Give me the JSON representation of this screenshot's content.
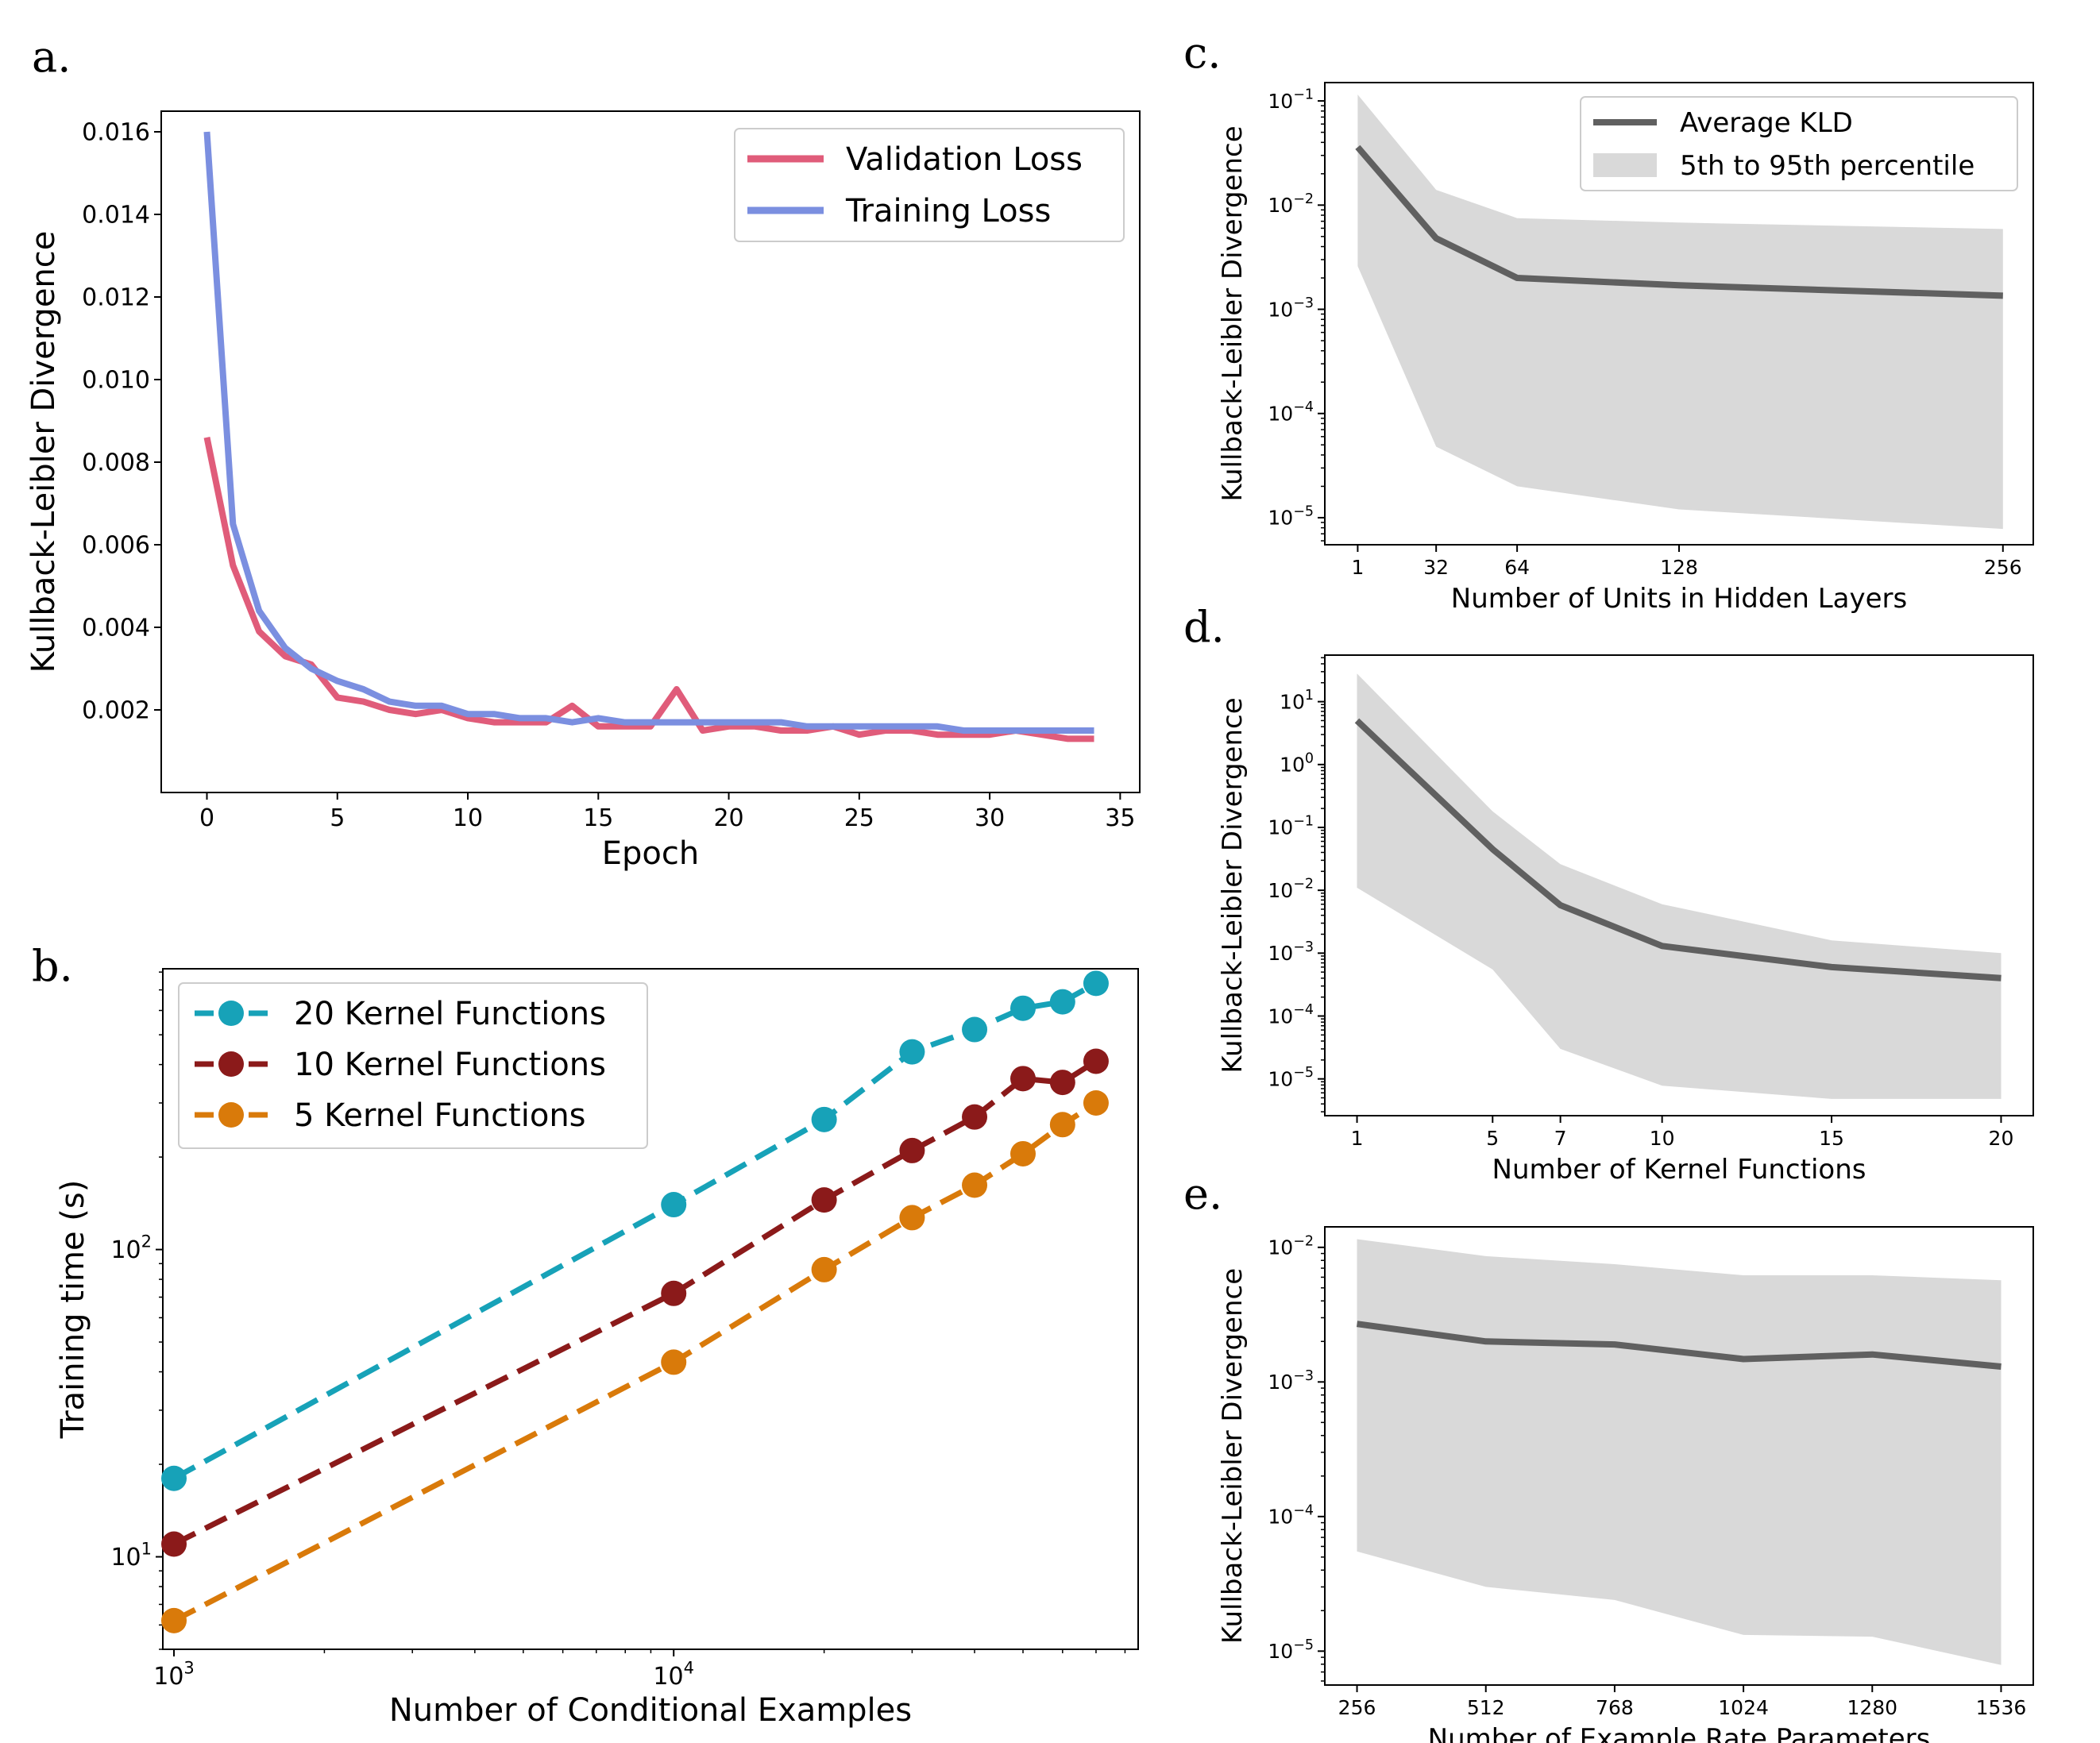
{
  "panel_labels": {
    "a": "a.",
    "b": "b.",
    "c": "c.",
    "d": "d.",
    "e": "e."
  },
  "chart_data": [
    {
      "id": "a",
      "type": "line",
      "title": "",
      "xlabel": "Epoch",
      "ylabel": "Kullback-Leibler Divergence",
      "xlim": [
        -1.75,
        35.75
      ],
      "ylim": [
        0.0,
        0.0165
      ],
      "x_ticks": [
        0,
        5,
        10,
        15,
        20,
        25,
        30,
        35
      ],
      "y_ticks": [
        0.002,
        0.004,
        0.006,
        0.008,
        0.01,
        0.012,
        0.014,
        0.016
      ],
      "y_tick_labels": [
        "0.002",
        "0.004",
        "0.006",
        "0.008",
        "0.010",
        "0.012",
        "0.014",
        "0.016"
      ],
      "legend": "top-right",
      "grid": false,
      "series": [
        {
          "name": "Validation Loss",
          "color": "#e05c7a",
          "x": [
            0,
            1,
            2,
            3,
            4,
            5,
            6,
            7,
            8,
            9,
            10,
            11,
            12,
            13,
            14,
            15,
            16,
            17,
            18,
            19,
            20,
            21,
            22,
            23,
            24,
            25,
            26,
            27,
            28,
            29,
            30,
            31,
            32,
            33,
            34
          ],
          "values": [
            0.0086,
            0.0055,
            0.0039,
            0.0033,
            0.0031,
            0.0023,
            0.0022,
            0.002,
            0.0019,
            0.002,
            0.0018,
            0.0017,
            0.0017,
            0.0017,
            0.0021,
            0.0016,
            0.0016,
            0.0016,
            0.0025,
            0.0015,
            0.0016,
            0.0016,
            0.0015,
            0.0015,
            0.0016,
            0.0014,
            0.0015,
            0.0015,
            0.0014,
            0.0014,
            0.0014,
            0.0015,
            0.0014,
            0.0013,
            0.0013
          ]
        },
        {
          "name": "Training Loss",
          "color": "#7b8fe0",
          "x": [
            0,
            1,
            2,
            3,
            4,
            5,
            6,
            7,
            8,
            9,
            10,
            11,
            12,
            13,
            14,
            15,
            16,
            17,
            18,
            19,
            20,
            21,
            22,
            23,
            24,
            25,
            26,
            27,
            28,
            29,
            30,
            31,
            32,
            33,
            34
          ],
          "values": [
            0.016,
            0.0065,
            0.0044,
            0.0035,
            0.003,
            0.0027,
            0.0025,
            0.0022,
            0.0021,
            0.0021,
            0.0019,
            0.0019,
            0.0018,
            0.0018,
            0.0017,
            0.0018,
            0.0017,
            0.0017,
            0.0017,
            0.0017,
            0.0017,
            0.0017,
            0.0017,
            0.0016,
            0.0016,
            0.0016,
            0.0016,
            0.0016,
            0.0016,
            0.0015,
            0.0015,
            0.0015,
            0.0015,
            0.0015,
            0.0015
          ]
        }
      ]
    },
    {
      "id": "b",
      "type": "line",
      "title": "",
      "xlabel": "Number of Conditional Examples",
      "ylabel": "Training time (s)",
      "xscale": "log",
      "yscale": "log",
      "xlim": [
        950,
        85000
      ],
      "ylim": [
        5.0,
        820
      ],
      "x_ticks": [
        1000,
        10000
      ],
      "x_tick_labels": [
        {
          "base": "10",
          "exp": "3"
        },
        {
          "base": "10",
          "exp": "4"
        }
      ],
      "y_ticks": [
        10,
        100
      ],
      "y_tick_labels": [
        {
          "base": "10",
          "exp": "1"
        },
        {
          "base": "10",
          "exp": "2"
        }
      ],
      "legend": "top-left",
      "grid": false,
      "x": [
        1000,
        10000,
        20000,
        30000,
        40000,
        50000,
        60000,
        70000
      ],
      "series": [
        {
          "name": "20 Kernel Functions",
          "color": "#17a2b8",
          "values": [
            18,
            140,
            265,
            440,
            520,
            610,
            640,
            735
          ]
        },
        {
          "name": "10 Kernel Functions",
          "color": "#8b1a1a",
          "values": [
            11,
            72,
            145,
            210,
            270,
            360,
            350,
            410
          ]
        },
        {
          "name": "5 Kernel Functions",
          "color": "#d97a0a",
          "values": [
            6.2,
            43,
            86,
            127,
            162,
            205,
            255,
            300
          ]
        }
      ]
    },
    {
      "id": "c",
      "type": "line",
      "title": "",
      "xlabel": "Number of Units in Hidden Layers",
      "ylabel": "Kullback-Leibler Divergence",
      "yscale": "log",
      "xlim": [
        -12,
        268
      ],
      "ylim": [
        5.5e-06,
        0.15
      ],
      "x_ticks": [
        1,
        32,
        64,
        128,
        256
      ],
      "y_ticks": [
        1e-05,
        0.0001,
        0.001,
        0.01,
        0.1
      ],
      "y_tick_labels": [
        {
          "base": "10",
          "exp": "−5"
        },
        {
          "base": "10",
          "exp": "−4"
        },
        {
          "base": "10",
          "exp": "−3"
        },
        {
          "base": "10",
          "exp": "−2"
        },
        {
          "base": "10",
          "exp": "−1"
        }
      ],
      "legend": "top-right",
      "grid": false,
      "x": [
        1,
        32,
        64,
        128,
        256
      ],
      "series": [
        {
          "name": "Average KLD",
          "color": "#606060",
          "values": [
            0.036,
            0.0048,
            0.002,
            0.0017,
            0.00135
          ]
        }
      ],
      "band": {
        "name": "5th to 95th percentile",
        "color": "#d9d9d9",
        "lower": [
          0.0026,
          4.8e-05,
          2e-05,
          1.2e-05,
          7.8e-06
        ],
        "upper": [
          0.115,
          0.014,
          0.0075,
          0.0068,
          0.0059
        ]
      }
    },
    {
      "id": "d",
      "type": "line",
      "title": "",
      "xlabel": "Number of Kernel Functions",
      "ylabel": "Kullback-Leibler Divergence",
      "yscale": "log",
      "xlim": [
        0.05,
        20.95
      ],
      "ylim": [
        2.6e-06,
        55
      ],
      "x_ticks": [
        1,
        5,
        7,
        10,
        15,
        20
      ],
      "y_ticks": [
        1e-05,
        0.0001,
        0.001,
        0.01,
        0.1,
        1,
        10
      ],
      "y_tick_labels": [
        {
          "base": "10",
          "exp": "−5"
        },
        {
          "base": "10",
          "exp": "−4"
        },
        {
          "base": "10",
          "exp": "−3"
        },
        {
          "base": "10",
          "exp": "−2"
        },
        {
          "base": "10",
          "exp": "−1"
        },
        {
          "base": "10",
          "exp": "0"
        },
        {
          "base": "10",
          "exp": "1"
        }
      ],
      "legend": "none",
      "grid": false,
      "x": [
        1,
        5,
        7,
        10,
        15,
        20
      ],
      "series": [
        {
          "name": "",
          "color": "#606060",
          "values": [
            5.0,
            0.045,
            0.0058,
            0.0013,
            0.0006,
            0.0004
          ]
        }
      ],
      "band": {
        "name": "",
        "color": "#d9d9d9",
        "lower": [
          0.011,
          0.00055,
          3e-05,
          7.8e-06,
          4.8e-06,
          4.8e-06
        ],
        "upper": [
          28,
          0.18,
          0.026,
          0.006,
          0.0016,
          0.001
        ]
      }
    },
    {
      "id": "e",
      "type": "line",
      "title": "",
      "xlabel": "Number of Example Rate Parameters",
      "ylabel": "Kullback-Leibler Divergence",
      "yscale": "log",
      "xlim": [
        192,
        1600
      ],
      "ylim": [
        5.6e-06,
        0.0142
      ],
      "x_ticks": [
        256,
        512,
        768,
        1024,
        1280,
        1536
      ],
      "y_ticks": [
        1e-05,
        0.0001,
        0.001,
        0.01
      ],
      "y_tick_labels": [
        {
          "base": "10",
          "exp": "−5"
        },
        {
          "base": "10",
          "exp": "−4"
        },
        {
          "base": "10",
          "exp": "−3"
        },
        {
          "base": "10",
          "exp": "−2"
        }
      ],
      "legend": "none",
      "grid": false,
      "x": [
        256,
        512,
        768,
        1024,
        1280,
        1536
      ],
      "series": [
        {
          "name": "",
          "color": "#606060",
          "values": [
            0.0027,
            0.002,
            0.0019,
            0.00148,
            0.0016,
            0.0013
          ]
        }
      ],
      "band": {
        "name": "",
        "color": "#d9d9d9",
        "lower": [
          5.5e-05,
          3e-05,
          2.4e-05,
          1.32e-05,
          1.28e-05,
          7.9e-06
        ],
        "upper": [
          0.0115,
          0.0086,
          0.0075,
          0.0062,
          0.0062,
          0.0057
        ]
      }
    }
  ]
}
